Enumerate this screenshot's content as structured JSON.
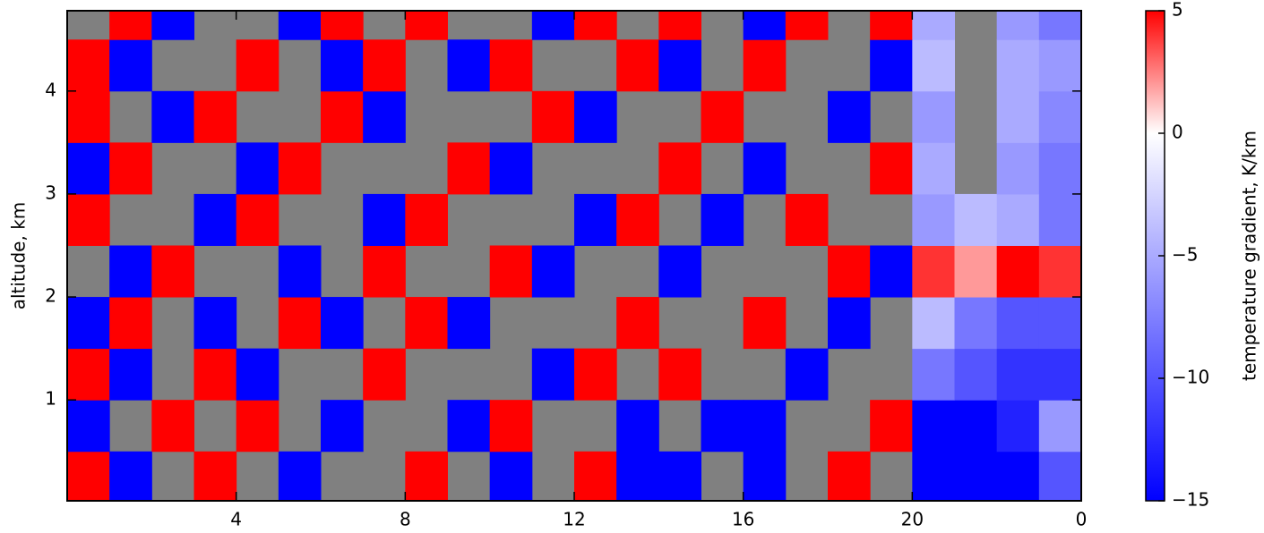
{
  "chart_data": {
    "type": "heatmap",
    "xlabel": null,
    "ylabel": "altitude, km",
    "xbins": [
      0,
      1,
      2,
      3,
      4,
      5,
      6,
      7,
      8,
      9,
      10,
      11,
      12,
      13,
      14,
      15,
      16,
      17,
      18,
      19,
      20,
      21,
      22,
      23,
      24
    ],
    "ybins": [
      0.02,
      0.5,
      1,
      1.5,
      2,
      2.5,
      3,
      3.5,
      4,
      4.5,
      4.78
    ],
    "z": [
      [
        5,
        -15,
        null,
        5,
        null,
        -15,
        null,
        null,
        5,
        null,
        -15,
        null,
        5,
        -15,
        -15,
        null,
        -15,
        null,
        5,
        null,
        -15,
        -15,
        -15,
        -10
      ],
      [
        -15,
        null,
        5,
        null,
        5,
        null,
        -15,
        null,
        null,
        -15,
        5,
        null,
        null,
        -15,
        null,
        -15,
        -15,
        null,
        null,
        5,
        -15,
        -15,
        -13,
        -6
      ],
      [
        5,
        -15,
        null,
        5,
        -15,
        null,
        null,
        5,
        null,
        null,
        null,
        -15,
        5,
        null,
        5,
        null,
        null,
        -15,
        null,
        null,
        -8,
        -10,
        -12,
        -12
      ],
      [
        -15,
        5,
        null,
        -15,
        null,
        5,
        -15,
        null,
        5,
        -15,
        null,
        null,
        null,
        5,
        null,
        null,
        5,
        null,
        -15,
        null,
        -4,
        -8,
        -10,
        -10
      ],
      [
        null,
        -15,
        5,
        null,
        null,
        -15,
        null,
        5,
        null,
        null,
        5,
        -15,
        null,
        null,
        -15,
        null,
        null,
        null,
        5,
        -15,
        4,
        2,
        5,
        4
      ],
      [
        5,
        null,
        null,
        -15,
        5,
        null,
        null,
        -15,
        5,
        null,
        null,
        null,
        -15,
        5,
        null,
        -15,
        null,
        5,
        null,
        null,
        -6,
        -4,
        -5,
        -8
      ],
      [
        -15,
        5,
        null,
        null,
        -15,
        5,
        null,
        null,
        null,
        5,
        -15,
        null,
        null,
        null,
        5,
        null,
        -15,
        null,
        null,
        5,
        -5,
        null,
        -6,
        -8
      ],
      [
        5,
        null,
        -15,
        5,
        null,
        null,
        5,
        -15,
        null,
        null,
        null,
        5,
        -15,
        null,
        null,
        5,
        null,
        null,
        -15,
        null,
        -6,
        null,
        -5,
        -7
      ],
      [
        5,
        -15,
        null,
        null,
        5,
        null,
        -15,
        5,
        null,
        -15,
        5,
        null,
        null,
        5,
        -15,
        null,
        5,
        null,
        null,
        -15,
        -4,
        null,
        -5,
        -6
      ],
      [
        null,
        5,
        -15,
        null,
        null,
        -15,
        5,
        null,
        5,
        null,
        null,
        -15,
        5,
        null,
        5,
        null,
        -15,
        5,
        null,
        5,
        -5,
        null,
        -6,
        -8
      ]
    ],
    "xlim": [
      0,
      24
    ],
    "xticks": [
      4,
      8,
      12,
      16,
      20,
      {
        "value": 24,
        "label": "0"
      }
    ],
    "ylim": [
      0.02,
      4.78
    ],
    "yticks": [
      1,
      2,
      3,
      4
    ],
    "clim": [
      -15,
      5
    ],
    "cticks": [
      {
        "value": -15,
        "label": "−15"
      },
      {
        "value": -10,
        "label": "−10"
      },
      {
        "value": -5,
        "label": "−5"
      },
      0,
      5
    ],
    "cmap": {
      "low": "#0000ff",
      "mid": "#ffffff",
      "high": "#ff0000",
      "center": 0
    },
    "nan_color": "#808080",
    "colorbar_label": "temperature gradient, K/km"
  }
}
